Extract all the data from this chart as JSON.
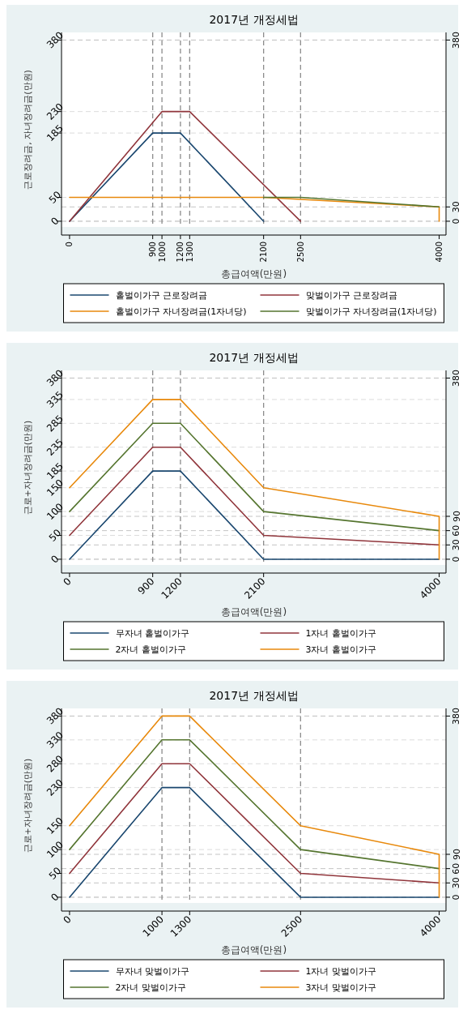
{
  "chart_data": [
    {
      "type": "line",
      "title": "2017년 개정세법",
      "xlabel": "총급여액(만원)",
      "ylabel": "근로장려금, 자녀장려금(만원)",
      "xlim": [
        -87,
        4074
      ],
      "xticks": [
        0,
        900,
        1000,
        1200,
        1300,
        2100,
        2500,
        4000
      ],
      "ylim": [
        -12,
        396
      ],
      "yticks": [
        0,
        50,
        185,
        230,
        380
      ],
      "y2lim": [
        -12,
        396
      ],
      "y2ticks": [
        0,
        30,
        380
      ],
      "grid": "y",
      "legend": "bottom",
      "line_style": "solid",
      "ref_lines": [
        {
          "axis": "x",
          "value": 900,
          "color": "#8c8c8c",
          "line_style": "dashed"
        },
        {
          "axis": "x",
          "value": 1000,
          "color": "#8c8c8c",
          "line_style": "dashed"
        },
        {
          "axis": "x",
          "value": 1200,
          "color": "#8c8c8c",
          "line_style": "dashed"
        },
        {
          "axis": "x",
          "value": 1300,
          "color": "#8c8c8c",
          "line_style": "dashed"
        },
        {
          "axis": "x",
          "value": 2100,
          "color": "#8c8c8c",
          "line_style": "dashed"
        },
        {
          "axis": "x",
          "value": 2500,
          "color": "#8c8c8c",
          "line_style": "dashed"
        }
      ],
      "series": [
        {
          "name": "홑벌이가구 근로장려금",
          "color": "#1a476f",
          "x": [
            0,
            900,
            1200,
            2100
          ],
          "values": [
            0,
            185,
            185,
            0
          ]
        },
        {
          "name": "맞벌이가구 근로장려금",
          "color": "#90353b",
          "x": [
            0,
            1000,
            1300,
            2500
          ],
          "values": [
            0,
            230,
            230,
            0
          ]
        },
        {
          "name": "홑벌이가구 자녀장려금(1자녀당)",
          "color": "#e8890c",
          "x": [
            0,
            2100,
            4000,
            4000
          ],
          "values": [
            50,
            50,
            30,
            0
          ]
        },
        {
          "name": "맞벌이가구 자녀장려금(1자녀당)",
          "color": "#55752f",
          "x": [
            2100,
            2500,
            4000
          ],
          "values": [
            50,
            50,
            30
          ]
        }
      ]
    },
    {
      "type": "line",
      "title": "2017년 개정세법",
      "xlabel": "총급여액(만원)",
      "ylabel": "근로+자녀장려금(만원)",
      "xlim": [
        -87,
        4074
      ],
      "xticks": [
        0,
        900,
        1200,
        2100,
        4000
      ],
      "ylim": [
        -12,
        396
      ],
      "yticks": [
        0,
        50,
        100,
        150,
        185,
        235,
        285,
        335,
        380
      ],
      "y2lim": [
        -12,
        396
      ],
      "y2ticks": [
        0,
        30,
        60,
        90,
        380
      ],
      "grid": "y",
      "legend": "bottom",
      "line_style": "solid",
      "ref_lines": [
        {
          "axis": "x",
          "value": 900,
          "color": "#8c8c8c",
          "line_style": "dashed"
        },
        {
          "axis": "x",
          "value": 1200,
          "color": "#8c8c8c",
          "line_style": "dashed"
        },
        {
          "axis": "x",
          "value": 2100,
          "color": "#8c8c8c",
          "line_style": "dashed"
        }
      ],
      "series": [
        {
          "name": "무자녀 홑벌이가구",
          "color": "#1a476f",
          "x": [
            0,
            900,
            1200,
            2100,
            4000
          ],
          "values": [
            0,
            185,
            185,
            0,
            0
          ]
        },
        {
          "name": "1자녀 홑벌이가구",
          "color": "#90353b",
          "x": [
            0,
            900,
            1200,
            2100,
            4000
          ],
          "values": [
            50,
            235,
            235,
            50,
            30
          ]
        },
        {
          "name": "2자녀 홑벌이가구",
          "color": "#55752f",
          "x": [
            0,
            900,
            1200,
            2100,
            4000
          ],
          "values": [
            100,
            285,
            285,
            100,
            60
          ]
        },
        {
          "name": "3자녀 홑벌이가구",
          "color": "#e8890c",
          "x": [
            0,
            900,
            1200,
            2100,
            4000,
            4000
          ],
          "values": [
            150,
            335,
            335,
            150,
            90,
            0
          ]
        }
      ]
    },
    {
      "type": "line",
      "title": "2017년 개정세법",
      "xlabel": "총급여액(만원)",
      "ylabel": "근로+자녀장려금(만원)",
      "xlim": [
        -87,
        4074
      ],
      "xticks": [
        0,
        1000,
        1300,
        2500,
        4000
      ],
      "ylim": [
        -12,
        396
      ],
      "yticks": [
        0,
        50,
        100,
        150,
        230,
        280,
        330,
        380
      ],
      "y2lim": [
        -12,
        396
      ],
      "y2ticks": [
        0,
        30,
        60,
        90,
        380
      ],
      "grid": "y",
      "legend": "bottom",
      "line_style": "solid",
      "ref_lines": [
        {
          "axis": "x",
          "value": 1000,
          "color": "#8c8c8c",
          "line_style": "dashed"
        },
        {
          "axis": "x",
          "value": 1300,
          "color": "#8c8c8c",
          "line_style": "dashed"
        },
        {
          "axis": "x",
          "value": 2500,
          "color": "#8c8c8c",
          "line_style": "dashed"
        }
      ],
      "series": [
        {
          "name": "무자녀 맞벌이가구",
          "color": "#1a476f",
          "x": [
            0,
            1000,
            1300,
            2500,
            4000
          ],
          "values": [
            0,
            230,
            230,
            0,
            0
          ]
        },
        {
          "name": "1자녀 맞벌이가구",
          "color": "#90353b",
          "x": [
            0,
            1000,
            1300,
            2500,
            4000
          ],
          "values": [
            50,
            280,
            280,
            50,
            30
          ]
        },
        {
          "name": "2자녀 맞벌이가구",
          "color": "#55752f",
          "x": [
            0,
            1000,
            1300,
            2500,
            4000
          ],
          "values": [
            100,
            330,
            330,
            100,
            60
          ]
        },
        {
          "name": "3자녀 맞벌이가구",
          "color": "#e8890c",
          "x": [
            0,
            1000,
            1300,
            2500,
            4000,
            4000
          ],
          "values": [
            150,
            380,
            380,
            150,
            90,
            0
          ]
        }
      ]
    }
  ]
}
